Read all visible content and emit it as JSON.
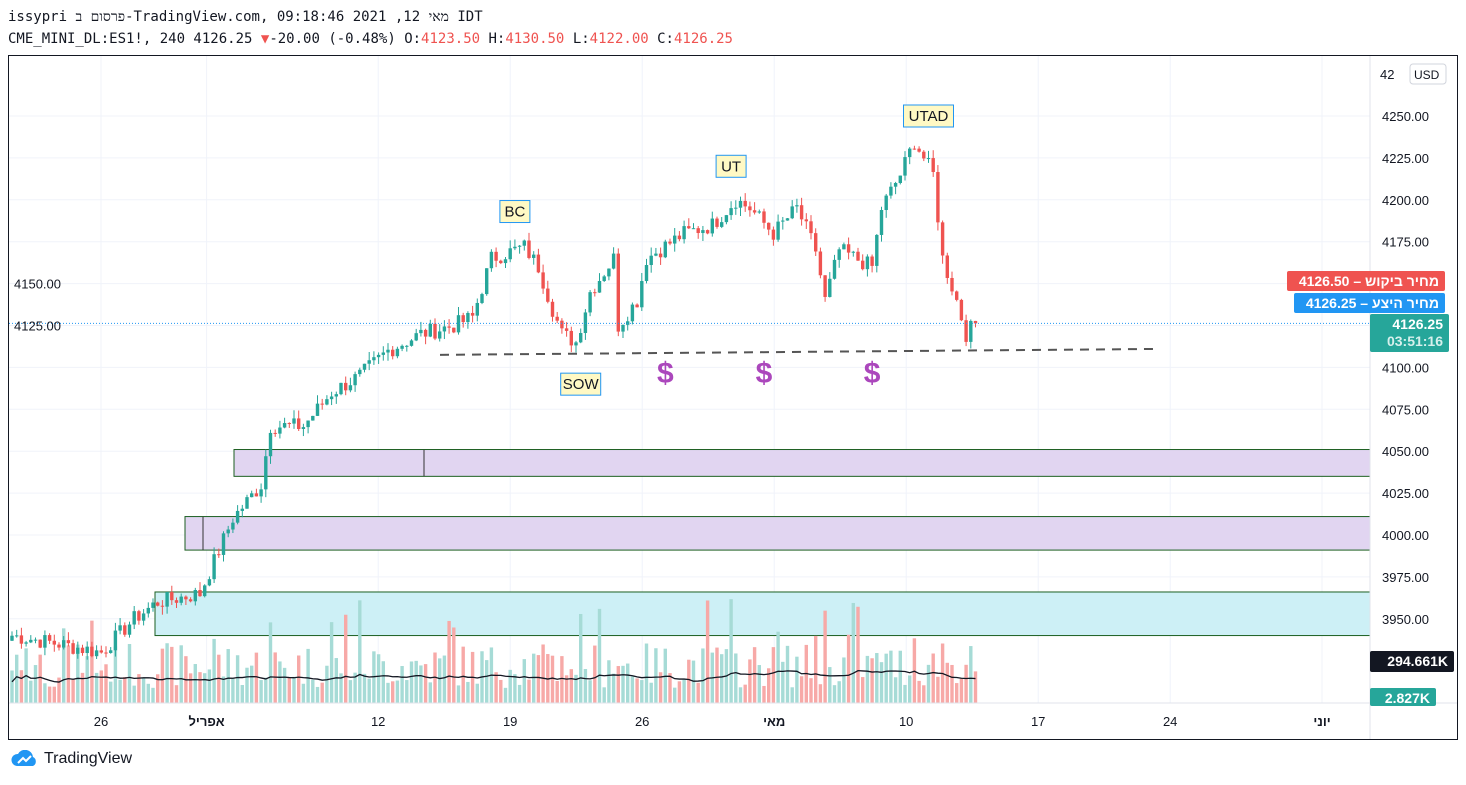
{
  "header": {
    "title": "issypri פרסום ב-TradingView.com, מאי 12, 2021 09:18:46 IDT",
    "symbol": "CME_MINI_DL:ES1!, 240 4126.25",
    "change": "-20.00 (-0.48%)",
    "o_label": "O:",
    "o": "4123.50",
    "h_label": "H:",
    "h": "4130.50",
    "l_label": "L:",
    "l": "4122.00",
    "c_label": "C:",
    "c": "4126.25"
  },
  "currency": "USD",
  "badges": {
    "ask": "4126.50",
    "ask_label": "מחיר ביקוש",
    "bid": "4126.25",
    "bid_label": "מחיר היצע",
    "last": "4126.25",
    "countdown": "03:51:16",
    "vol_ma": "294.661K",
    "volume": "2.827K"
  },
  "colors": {
    "up": "#26a69a",
    "down": "#ef5350",
    "zone_purple": "#e1d5f1",
    "zone_cyan": "#cdf0f6",
    "zone_border": "#1b5e20",
    "label_bg": "#fff9c4",
    "dollar": "#ab47bc"
  },
  "footer": {
    "brand": "TradingView"
  },
  "chart_data": {
    "type": "candlestick",
    "yaxis": {
      "ticks": [
        4250,
        4225,
        4200,
        4175,
        4150,
        4125,
        4100,
        4075,
        4050,
        4025,
        4000,
        3975,
        3950
      ],
      "partial_top": "42"
    },
    "xaxis": {
      "ticks": [
        {
          "label": "26",
          "week": 0
        },
        {
          "label": "אפריל",
          "week": 0.8
        },
        {
          "label": "12",
          "week": 2.1
        },
        {
          "label": "19",
          "week": 3.1
        },
        {
          "label": "26",
          "week": 4.1
        },
        {
          "label": "מאי",
          "week": 5.1
        },
        {
          "label": "10",
          "week": 6.1
        },
        {
          "label": "17",
          "week": 7.1
        },
        {
          "label": "24",
          "week": 8.1
        },
        {
          "label": "יוני",
          "week": 9.25
        }
      ]
    },
    "close_keypoints": [
      [
        0,
        3940
      ],
      [
        10,
        3935
      ],
      [
        19,
        3930
      ],
      [
        26,
        3950
      ],
      [
        31,
        3960
      ],
      [
        40,
        3965
      ],
      [
        47,
        4010
      ],
      [
        53,
        4030
      ],
      [
        55,
        4065
      ],
      [
        62,
        4065
      ],
      [
        68,
        4085
      ],
      [
        74,
        4095
      ],
      [
        80,
        4110
      ],
      [
        87,
        4120
      ],
      [
        94,
        4125
      ],
      [
        98,
        4130
      ],
      [
        102,
        4165
      ],
      [
        109,
        4172
      ],
      [
        112,
        4160
      ],
      [
        115,
        4135
      ],
      [
        117,
        4120
      ],
      [
        120,
        4115
      ],
      [
        123,
        4145
      ],
      [
        128,
        4165
      ],
      [
        129,
        4125
      ],
      [
        133,
        4140
      ],
      [
        135,
        4165
      ],
      [
        143,
        4180
      ],
      [
        149,
        4185
      ],
      [
        154,
        4200
      ],
      [
        157,
        4195
      ],
      [
        162,
        4180
      ],
      [
        167,
        4195
      ],
      [
        171,
        4170
      ],
      [
        173,
        4140
      ],
      [
        176,
        4170
      ],
      [
        183,
        4160
      ],
      [
        185,
        4195
      ],
      [
        189,
        4215
      ],
      [
        192,
        4235
      ],
      [
        196,
        4215
      ],
      [
        198,
        4165
      ],
      [
        201,
        4140
      ],
      [
        203,
        4120
      ],
      [
        205,
        4126.25
      ]
    ],
    "zones": [
      {
        "top": 4051,
        "bottom": 4035,
        "color": "purple"
      },
      {
        "top": 4011,
        "bottom": 3991,
        "color": "purple"
      },
      {
        "top": 3966,
        "bottom": 3940,
        "color": "cyan"
      }
    ],
    "support_line": {
      "from": 4107.5,
      "to": 4111
    },
    "annotations": [
      {
        "text": "BC",
        "price": 4193,
        "idx": 107
      },
      {
        "text": "UT",
        "price": 4220,
        "idx": 153
      },
      {
        "text": "UTAD",
        "price": 4250,
        "idx": 195
      },
      {
        "text": "SOW",
        "price": 4090,
        "idx": 121
      }
    ],
    "dollar_marks": {
      "text": "$",
      "idx": [
        139,
        160,
        183
      ],
      "price": 4098
    }
  }
}
